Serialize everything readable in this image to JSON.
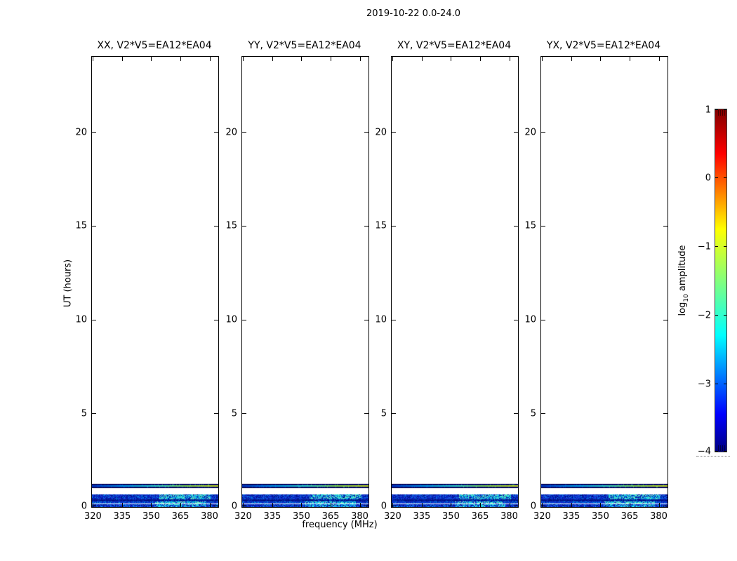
{
  "figure": {
    "title": "2019-10-22 0.0-24.0",
    "xlabel": "frequency (MHz)",
    "ylabel": "UT (hours)",
    "colorbar_label": {
      "prefix": "log",
      "sub": "10",
      "suffix": " amplitude"
    }
  },
  "chart_data": {
    "type": "heatmap",
    "title": "2019-10-22 0.0-24.0",
    "layout_note": "four dynamic-spectrum panels sharing axes, colorbar at right, data visible only between UT 0.0 and ~1.2 hours as horizontal blue/cyan bands",
    "panels": [
      {
        "polarization": "XX",
        "title": "XX, V2*V5=EA12*EA04"
      },
      {
        "polarization": "YY",
        "title": "YY, V2*V5=EA12*EA04"
      },
      {
        "polarization": "XY",
        "title": "XY, V2*V5=EA12*EA04"
      },
      {
        "polarization": "YX",
        "title": "YX, V2*V5=EA12*EA04"
      }
    ],
    "x": {
      "label": "frequency (MHz)",
      "range": [
        319.5,
        384.5
      ],
      "ticks": [
        320,
        335,
        350,
        365,
        380
      ],
      "tick_labels": [
        "320",
        "335",
        "350",
        "365",
        "380"
      ]
    },
    "y": {
      "label": "UT (hours)",
      "range": [
        0,
        24
      ],
      "ticks": [
        0,
        5,
        10,
        15,
        20
      ],
      "tick_labels": [
        "0",
        "5",
        "10",
        "15",
        "20"
      ]
    },
    "colorbar": {
      "label": "log10 amplitude",
      "range": [
        -4,
        1
      ],
      "ticks": [
        1,
        0,
        -1,
        -2,
        -3,
        -4
      ],
      "tick_labels": [
        "1",
        "0",
        "−1",
        "−2",
        "−3",
        "−4"
      ],
      "colormap": "jet",
      "gradient": [
        {
          "pos": 0.0,
          "color": "#7f0000"
        },
        {
          "pos": 0.13,
          "color": "#ff0000"
        },
        {
          "pos": 0.35,
          "color": "#ffff00"
        },
        {
          "pos": 0.66,
          "color": "#00ffff"
        },
        {
          "pos": 0.89,
          "color": "#0000ff"
        },
        {
          "pos": 1.0,
          "color": "#000080"
        }
      ]
    },
    "bands": [
      {
        "name": "scan-band-1.1h",
        "ut_start": 1.01,
        "ut_end": 1.22,
        "base": "#000080",
        "edge": "#000040",
        "speckles": [
          "#0000c8",
          "#0030d8",
          "#001060"
        ],
        "density": 0.35,
        "line": {
          "ut": 1.115,
          "gradient": [
            "#0038c0",
            "#0098e0",
            "#30d0c0",
            "#80d040",
            "#c8d818"
          ]
        },
        "hot": {
          "f_start": 348,
          "f_end": 383,
          "colors": [
            "#2090e0",
            "#40c8a0"
          ],
          "density": 0.1
        }
      },
      {
        "name": "scan-band-0.5h",
        "ut_start": 0.41,
        "ut_end": 0.67,
        "base": "#0a28c8",
        "speckles": [
          "#0018a0",
          "#2050e0",
          "#0080e0",
          "#000d80"
        ],
        "density": 0.55,
        "hot": {
          "f_start": 354,
          "f_end": 381,
          "colors": [
            "#00c8f0",
            "#40e0cc",
            "#70e8b8"
          ],
          "density": 0.55
        }
      },
      {
        "name": "scan-band-0.35h",
        "ut_start": 0.3,
        "ut_end": 0.41,
        "base": "#000d80",
        "speckles": [
          "#001a99",
          "#0030b8"
        ],
        "density": 0.35,
        "hot": {
          "f_start": 356,
          "f_end": 378,
          "colors": [
            "#0060c8"
          ],
          "density": 0.2
        }
      },
      {
        "name": "scan-band-0.25h",
        "ut_start": 0.185,
        "ut_end": 0.3,
        "base": "#1030cc",
        "speckles": [
          "#0048e0",
          "#00a0e8",
          "#0020a0"
        ],
        "density": 0.5,
        "hot": {
          "f_start": 352,
          "f_end": 378,
          "colors": [
            "#40e0cc",
            "#80f0c8",
            "#00d0f0"
          ],
          "density": 0.6
        }
      },
      {
        "name": "white-gap-line",
        "ut_start": 0.148,
        "ut_end": 0.185,
        "base": "#ffffff",
        "speckles": [],
        "density": 0
      },
      {
        "name": "scan-band-0.07h",
        "ut_start": 0.0,
        "ut_end": 0.148,
        "base": "#0a28c8",
        "speckles": [
          "#0018a0",
          "#2050e0",
          "#00a0e8",
          "#000d80"
        ],
        "density": 0.55,
        "hot": {
          "f_start": 352,
          "f_end": 378,
          "colors": [
            "#00c8f0",
            "#40e0cc"
          ],
          "density": 0.45
        }
      }
    ]
  }
}
